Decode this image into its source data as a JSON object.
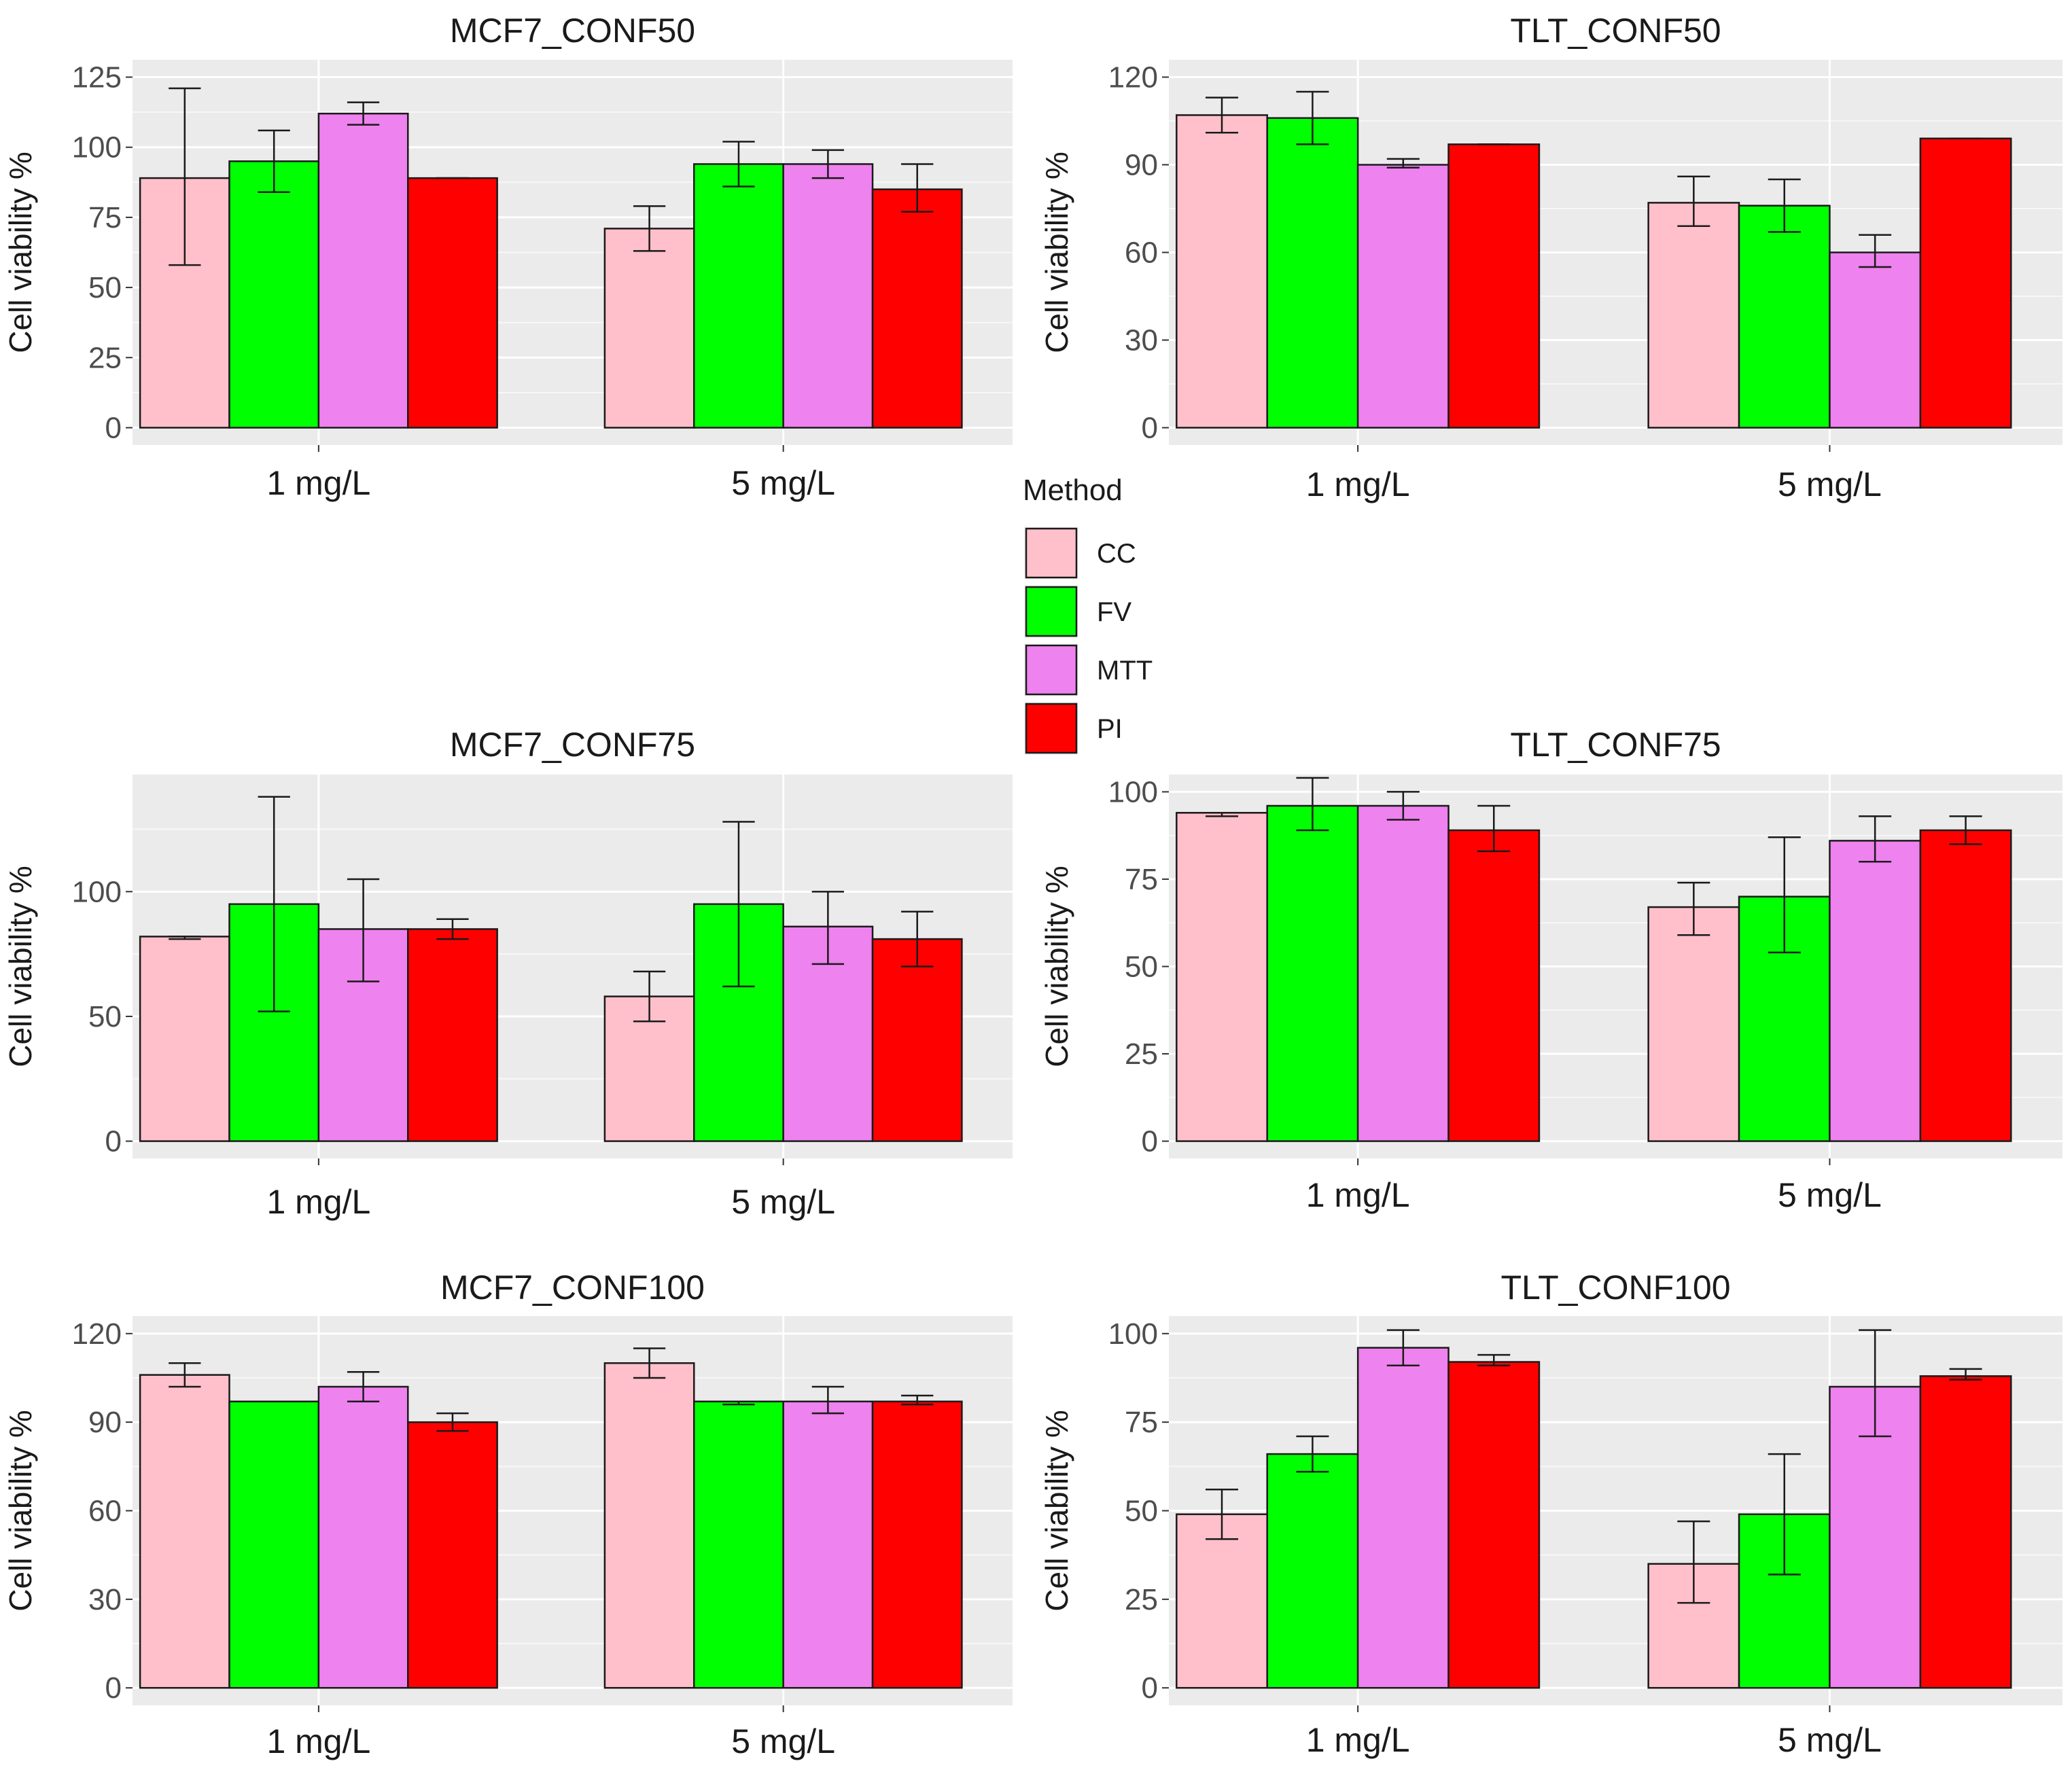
{
  "legend": {
    "title": "Method",
    "items": [
      {
        "label": "CC",
        "color": "#FFC0CB"
      },
      {
        "label": "FV",
        "color": "#00FF00"
      },
      {
        "label": "MTT",
        "color": "#EE82EE"
      },
      {
        "label": "PI",
        "color": "#FF0000"
      }
    ]
  },
  "chart_data": [
    {
      "type": "bar",
      "title": "MCF7_CONF50",
      "ylabel": "Cell viability %",
      "categories": [
        "1 mg/L",
        "5 mg/L"
      ],
      "ylim": [
        0,
        125
      ],
      "yticks": [
        0,
        25,
        50,
        75,
        100,
        125
      ],
      "series": [
        {
          "name": "CC",
          "values": [
            89,
            71
          ],
          "err_low": [
            58,
            63
          ],
          "err_high": [
            121,
            79
          ]
        },
        {
          "name": "FV",
          "values": [
            95,
            94
          ],
          "err_low": [
            84,
            86
          ],
          "err_high": [
            106,
            102
          ]
        },
        {
          "name": "MTT",
          "values": [
            112,
            94
          ],
          "err_low": [
            108,
            89
          ],
          "err_high": [
            116,
            99
          ]
        },
        {
          "name": "PI",
          "values": [
            89,
            85
          ],
          "err_low": [
            89,
            77
          ],
          "err_high": [
            89,
            94
          ]
        }
      ]
    },
    {
      "type": "bar",
      "title": "TLT_CONF50",
      "ylabel": "Cell viability %",
      "categories": [
        "1 mg/L",
        "5 mg/L"
      ],
      "ylim": [
        0,
        120
      ],
      "yticks": [
        0,
        30,
        60,
        90,
        120
      ],
      "series": [
        {
          "name": "CC",
          "values": [
            107,
            77
          ],
          "err_low": [
            101,
            69
          ],
          "err_high": [
            113,
            86
          ]
        },
        {
          "name": "FV",
          "values": [
            106,
            76
          ],
          "err_low": [
            97,
            67
          ],
          "err_high": [
            115,
            85
          ]
        },
        {
          "name": "MTT",
          "values": [
            90,
            60
          ],
          "err_low": [
            89,
            55
          ],
          "err_high": [
            92,
            66
          ]
        },
        {
          "name": "PI",
          "values": [
            97,
            99
          ],
          "err_low": [
            97,
            99
          ],
          "err_high": [
            97,
            99
          ]
        }
      ]
    },
    {
      "type": "bar",
      "title": "MCF7_CONF75",
      "ylabel": "Cell viability %",
      "categories": [
        "1 mg/L",
        "5 mg/L"
      ],
      "ylim": [
        0,
        140
      ],
      "yticks": [
        0,
        50,
        100
      ],
      "series": [
        {
          "name": "CC",
          "values": [
            82,
            58
          ],
          "err_low": [
            81,
            48
          ],
          "err_high": [
            82,
            68
          ]
        },
        {
          "name": "FV",
          "values": [
            95,
            95
          ],
          "err_low": [
            52,
            62
          ],
          "err_high": [
            138,
            128
          ]
        },
        {
          "name": "MTT",
          "values": [
            85,
            86
          ],
          "err_low": [
            64,
            71
          ],
          "err_high": [
            105,
            100
          ]
        },
        {
          "name": "PI",
          "values": [
            85,
            81
          ],
          "err_low": [
            81,
            70
          ],
          "err_high": [
            89,
            92
          ]
        }
      ]
    },
    {
      "type": "bar",
      "title": "TLT_CONF75",
      "ylabel": "Cell viability %",
      "categories": [
        "1 mg/L",
        "5 mg/L"
      ],
      "ylim": [
        0,
        100
      ],
      "yticks": [
        0,
        25,
        50,
        75,
        100
      ],
      "series": [
        {
          "name": "CC",
          "values": [
            94,
            67
          ],
          "err_low": [
            93,
            59
          ],
          "err_high": [
            94,
            74
          ]
        },
        {
          "name": "FV",
          "values": [
            96,
            70
          ],
          "err_low": [
            89,
            54
          ],
          "err_high": [
            104,
            87
          ]
        },
        {
          "name": "MTT",
          "values": [
            96,
            86
          ],
          "err_low": [
            92,
            80
          ],
          "err_high": [
            100,
            93
          ]
        },
        {
          "name": "PI",
          "values": [
            89,
            89
          ],
          "err_low": [
            83,
            85
          ],
          "err_high": [
            96,
            93
          ]
        }
      ]
    },
    {
      "type": "bar",
      "title": "MCF7_CONF100",
      "ylabel": "Cell viability %",
      "categories": [
        "1 mg/L",
        "5 mg/L"
      ],
      "ylim": [
        0,
        120
      ],
      "yticks": [
        0,
        30,
        60,
        90,
        120
      ],
      "series": [
        {
          "name": "CC",
          "values": [
            106,
            110
          ],
          "err_low": [
            102,
            105
          ],
          "err_high": [
            110,
            115
          ]
        },
        {
          "name": "FV",
          "values": [
            97,
            97
          ],
          "err_low": [
            97,
            96
          ],
          "err_high": [
            97,
            97
          ]
        },
        {
          "name": "MTT",
          "values": [
            102,
            97
          ],
          "err_low": [
            97,
            93
          ],
          "err_high": [
            107,
            102
          ]
        },
        {
          "name": "PI",
          "values": [
            90,
            97
          ],
          "err_low": [
            87,
            96
          ],
          "err_high": [
            93,
            99
          ]
        }
      ]
    },
    {
      "type": "bar",
      "title": "TLT_CONF100",
      "ylabel": "Cell viability %",
      "categories": [
        "1 mg/L",
        "5 mg/L"
      ],
      "ylim": [
        0,
        100
      ],
      "yticks": [
        0,
        25,
        50,
        75,
        100
      ],
      "series": [
        {
          "name": "CC",
          "values": [
            49,
            35
          ],
          "err_low": [
            42,
            24
          ],
          "err_high": [
            56,
            47
          ]
        },
        {
          "name": "FV",
          "values": [
            66,
            49
          ],
          "err_low": [
            61,
            32
          ],
          "err_high": [
            71,
            66
          ]
        },
        {
          "name": "MTT",
          "values": [
            96,
            85
          ],
          "err_low": [
            91,
            71
          ],
          "err_high": [
            101,
            101
          ]
        },
        {
          "name": "PI",
          "values": [
            92,
            88
          ],
          "err_low": [
            91,
            87
          ],
          "err_high": [
            94,
            90
          ]
        }
      ]
    }
  ]
}
